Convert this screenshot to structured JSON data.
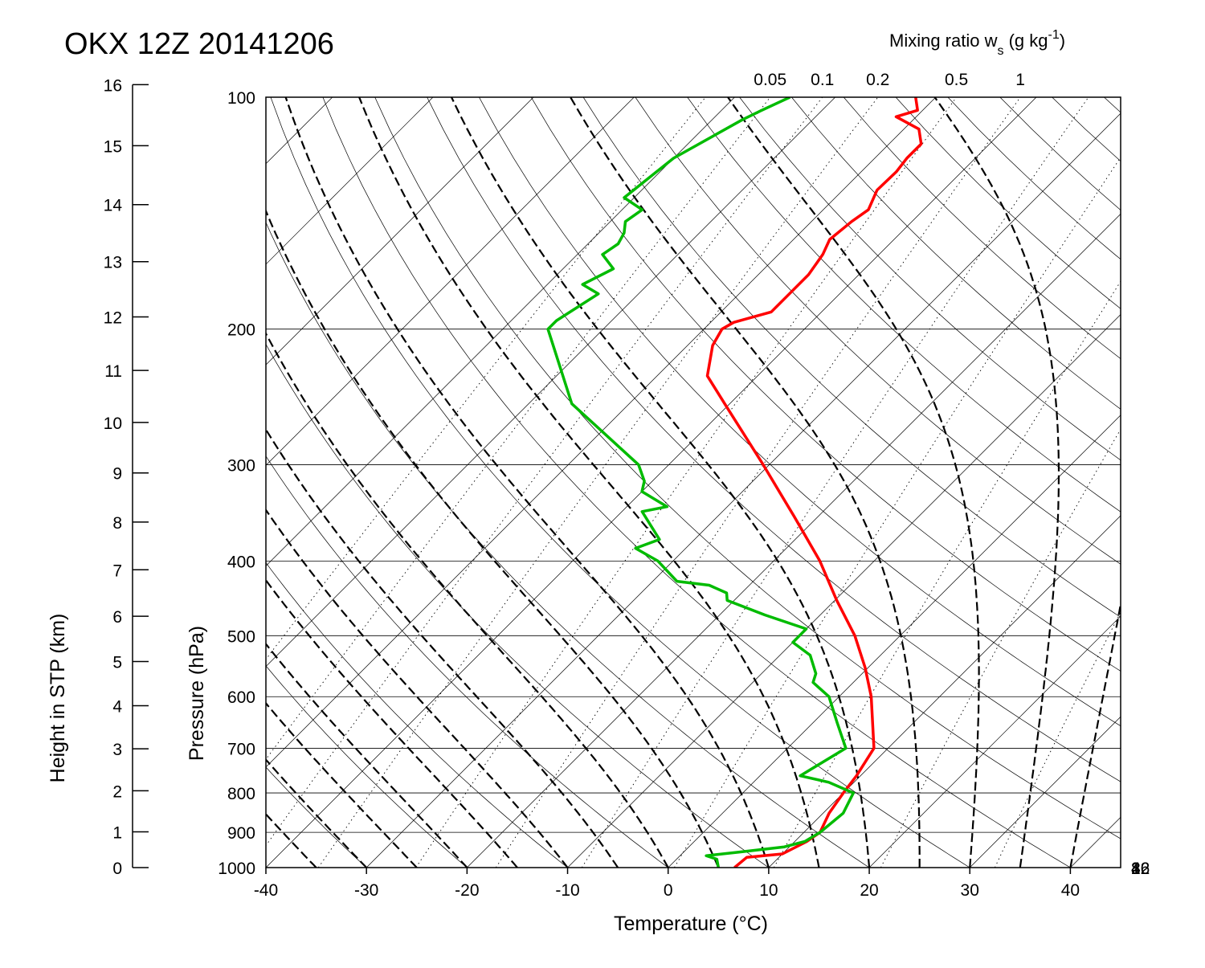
{
  "chart_data": {
    "type": "line",
    "title": "OKX 12Z 20141206",
    "xlabel": "Temperature (°C)",
    "ylabel": "Pressure (hPa)",
    "y2label": "Height in STP (km)",
    "mixing_title": "Mixing ratio w",
    "mixing_title_sub": "s",
    "mixing_title_unit": "(g kg",
    "mixing_title_sup": "-1",
    "mixing_title_close": ")",
    "xlim": [
      -40,
      45
    ],
    "ylim": [
      1000,
      100
    ],
    "y_scale": "log",
    "grid": true,
    "x_ticks": [
      "-40",
      "-30",
      "-20",
      "-10",
      "0",
      "10",
      "20",
      "30",
      "40"
    ],
    "p_ticks": [
      "100",
      "200",
      "300",
      "400",
      "500",
      "600",
      "700",
      "800",
      "900",
      "1000"
    ],
    "height_ticks": [
      "0",
      "1",
      "2",
      "3",
      "4",
      "5",
      "6",
      "7",
      "8",
      "9",
      "10",
      "11",
      "12",
      "13",
      "14",
      "15",
      "16"
    ],
    "mixing_ratio_labels": [
      {
        "label": "0.05",
        "value": 0.05
      },
      {
        "label": "0.1",
        "value": 0.1
      },
      {
        "label": "0.2",
        "value": 0.2
      },
      {
        "label": "0.5",
        "value": 0.5
      },
      {
        "label": "1",
        "value": 1
      }
    ],
    "mixing_ratio_right_labels": [
      {
        "label": "2",
        "value": 2
      },
      {
        "label": "4",
        "value": 4
      },
      {
        "label": "8",
        "value": 8
      },
      {
        "label": "16",
        "value": 16
      },
      {
        "label": "32",
        "value": 32
      }
    ],
    "series": [
      {
        "color": "#ff0000",
        "points": [
          [
            1000,
            6.6
          ],
          [
            970,
            6.8
          ],
          [
            960,
            10.0
          ],
          [
            925,
            11.2
          ],
          [
            900,
            11.6
          ],
          [
            850,
            10.6
          ],
          [
            800,
            10.0
          ],
          [
            760,
            9.6
          ],
          [
            700,
            8.6
          ],
          [
            600,
            3.2
          ],
          [
            550,
            -0.3
          ],
          [
            500,
            -4.5
          ],
          [
            450,
            -9.8
          ],
          [
            400,
            -15.4
          ],
          [
            350,
            -22.4
          ],
          [
            300,
            -30.6
          ],
          [
            250,
            -40.5
          ],
          [
            230,
            -45.0
          ],
          [
            210,
            -47.5
          ],
          [
            200,
            -48.2
          ],
          [
            196,
            -47.7
          ],
          [
            190,
            -45.0
          ],
          [
            180,
            -45.0
          ],
          [
            170,
            -45.0
          ],
          [
            160,
            -45.6
          ],
          [
            153,
            -46.4
          ],
          [
            145,
            -46.0
          ],
          [
            140,
            -45.5
          ],
          [
            132,
            -46.6
          ],
          [
            125,
            -46.5
          ],
          [
            120,
            -46.8
          ],
          [
            115,
            -46.8
          ],
          [
            110,
            -48.5
          ],
          [
            106,
            -52.0
          ],
          [
            104,
            -50.5
          ],
          [
            100,
            -52.0
          ]
        ]
      },
      {
        "color": "#00bb00",
        "points": [
          [
            1000,
            5.0
          ],
          [
            975,
            4.0
          ],
          [
            965,
            2.6
          ],
          [
            955,
            5.5
          ],
          [
            940,
            9.5
          ],
          [
            925,
            11.0
          ],
          [
            900,
            11.6
          ],
          [
            850,
            12.0
          ],
          [
            800,
            11.0
          ],
          [
            775,
            7.5
          ],
          [
            760,
            4.0
          ],
          [
            700,
            5.8
          ],
          [
            650,
            2.5
          ],
          [
            600,
            -1.0
          ],
          [
            575,
            -4.0
          ],
          [
            560,
            -4.6
          ],
          [
            530,
            -7.0
          ],
          [
            510,
            -10.0
          ],
          [
            500,
            -10.0
          ],
          [
            490,
            -10.0
          ],
          [
            470,
            -15.5
          ],
          [
            450,
            -20.7
          ],
          [
            440,
            -21.5
          ],
          [
            430,
            -24.0
          ],
          [
            425,
            -27.6
          ],
          [
            400,
            -31.5
          ],
          [
            385,
            -35.0
          ],
          [
            375,
            -33.5
          ],
          [
            345,
            -38.0
          ],
          [
            340,
            -36.0
          ],
          [
            325,
            -40.0
          ],
          [
            315,
            -40.8
          ],
          [
            300,
            -43.0
          ],
          [
            250,
            -55.7
          ],
          [
            200,
            -65.5
          ],
          [
            195,
            -65.5
          ],
          [
            180,
            -64.0
          ],
          [
            175,
            -66.5
          ],
          [
            167,
            -65.0
          ],
          [
            160,
            -67.5
          ],
          [
            155,
            -67.0
          ],
          [
            150,
            -67.5
          ],
          [
            145,
            -68.5
          ],
          [
            140,
            -68.0
          ],
          [
            135,
            -71.0
          ],
          [
            120,
            -70.0
          ],
          [
            107,
            -67.0
          ],
          [
            104,
            -66.0
          ],
          [
            100,
            -64.5
          ]
        ]
      }
    ]
  }
}
